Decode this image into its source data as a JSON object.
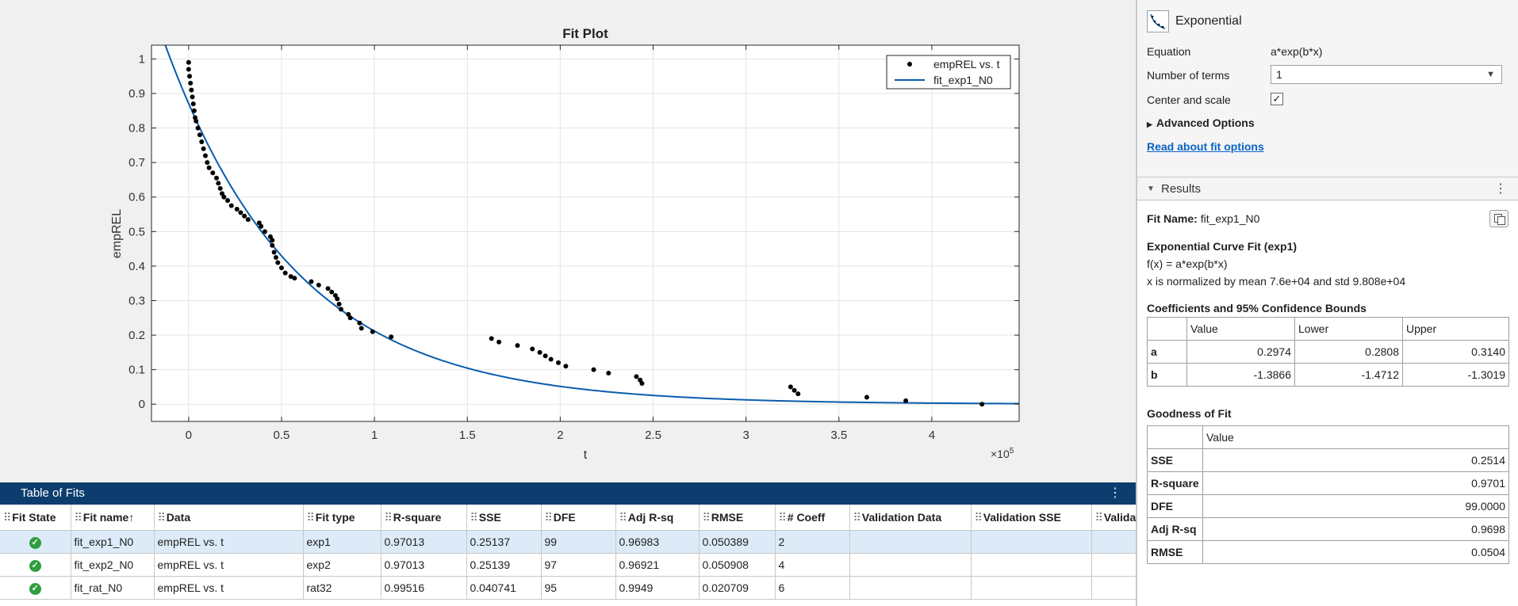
{
  "plot": {
    "title": "Fit Plot",
    "xlabel": "t",
    "ylabel": "empREL",
    "exponent_label": "×10",
    "exponent_power": "5",
    "legend": [
      {
        "label": "empREL vs. t",
        "type": "dots"
      },
      {
        "label": "fit_exp1_N0",
        "type": "line"
      }
    ],
    "x_ticks": [
      "0",
      "0.5",
      "1",
      "1.5",
      "2",
      "2.5",
      "3",
      "3.5",
      "4"
    ],
    "y_ticks": [
      "0",
      "0.1",
      "0.2",
      "0.3",
      "0.4",
      "0.5",
      "0.6",
      "0.7",
      "0.8",
      "0.9",
      "1"
    ],
    "xlim": [
      -0.2,
      4.47
    ],
    "ylim": [
      -0.05,
      1.04
    ],
    "line_color": "#0b5cad",
    "point_color": "#000000"
  },
  "chart_data": {
    "type": "scatter",
    "title": "Fit Plot",
    "xlabel": "t",
    "ylabel": "empREL",
    "x_scale_factor": "×10^5",
    "xlim": [
      -0.2,
      4.47
    ],
    "ylim": [
      -0.05,
      1.04
    ],
    "grid": true,
    "legend_position": "top-right",
    "series": [
      {
        "name": "empREL vs. t",
        "kind": "scatter",
        "points": [
          [
            0.0,
            0.99
          ],
          [
            0.0,
            0.97
          ],
          [
            0.005,
            0.95
          ],
          [
            0.01,
            0.93
          ],
          [
            0.015,
            0.91
          ],
          [
            0.02,
            0.89
          ],
          [
            0.025,
            0.87
          ],
          [
            0.03,
            0.85
          ],
          [
            0.035,
            0.83
          ],
          [
            0.04,
            0.82
          ],
          [
            0.05,
            0.8
          ],
          [
            0.06,
            0.78
          ],
          [
            0.07,
            0.76
          ],
          [
            0.08,
            0.74
          ],
          [
            0.09,
            0.72
          ],
          [
            0.1,
            0.7
          ],
          [
            0.11,
            0.685
          ],
          [
            0.13,
            0.67
          ],
          [
            0.15,
            0.655
          ],
          [
            0.16,
            0.64
          ],
          [
            0.17,
            0.625
          ],
          [
            0.18,
            0.61
          ],
          [
            0.19,
            0.6
          ],
          [
            0.21,
            0.59
          ],
          [
            0.23,
            0.575
          ],
          [
            0.26,
            0.565
          ],
          [
            0.28,
            0.555
          ],
          [
            0.3,
            0.545
          ],
          [
            0.32,
            0.535
          ],
          [
            0.38,
            0.525
          ],
          [
            0.39,
            0.515
          ],
          [
            0.41,
            0.5
          ],
          [
            0.44,
            0.485
          ],
          [
            0.45,
            0.475
          ],
          [
            0.45,
            0.46
          ],
          [
            0.46,
            0.44
          ],
          [
            0.47,
            0.425
          ],
          [
            0.48,
            0.41
          ],
          [
            0.5,
            0.395
          ],
          [
            0.52,
            0.38
          ],
          [
            0.55,
            0.37
          ],
          [
            0.57,
            0.365
          ],
          [
            0.66,
            0.355
          ],
          [
            0.7,
            0.345
          ],
          [
            0.75,
            0.335
          ],
          [
            0.77,
            0.325
          ],
          [
            0.79,
            0.315
          ],
          [
            0.8,
            0.305
          ],
          [
            0.81,
            0.29
          ],
          [
            0.82,
            0.275
          ],
          [
            0.86,
            0.26
          ],
          [
            0.87,
            0.25
          ],
          [
            0.92,
            0.235
          ],
          [
            0.93,
            0.22
          ],
          [
            0.99,
            0.21
          ],
          [
            1.09,
            0.195
          ],
          [
            1.63,
            0.19
          ],
          [
            1.67,
            0.18
          ],
          [
            1.77,
            0.17
          ],
          [
            1.85,
            0.16
          ],
          [
            1.89,
            0.15
          ],
          [
            1.92,
            0.14
          ],
          [
            1.95,
            0.13
          ],
          [
            1.99,
            0.12
          ],
          [
            2.03,
            0.11
          ],
          [
            2.18,
            0.1
          ],
          [
            2.26,
            0.09
          ],
          [
            2.41,
            0.08
          ],
          [
            2.43,
            0.07
          ],
          [
            2.44,
            0.06
          ],
          [
            3.24,
            0.05
          ],
          [
            3.26,
            0.04
          ],
          [
            3.28,
            0.03
          ],
          [
            3.65,
            0.02
          ],
          [
            3.86,
            0.01
          ],
          [
            4.27,
            0.0
          ]
        ]
      },
      {
        "name": "fit_exp1_N0",
        "kind": "line",
        "model": "0.2974*exp(-1.3866*(x-0.76)/0.9808)"
      }
    ]
  },
  "table_of_fits": {
    "title": "Table of Fits",
    "columns": [
      "Fit State",
      "Fit name",
      "Data",
      "Fit type",
      "R-square",
      "SSE",
      "DFE",
      "Adj R-sq",
      "RMSE",
      "# Coeff",
      "Validation Data",
      "Validation SSE",
      "Validat"
    ],
    "sort_indicator": "↑",
    "rows": [
      {
        "name": "fit_exp1_N0",
        "data": "empREL vs. t",
        "type": "exp1",
        "rsq": "0.97013",
        "sse": "0.25137",
        "dfe": "99",
        "adjrsq": "0.96983",
        "rmse": "0.050389",
        "coeff": "2",
        "selected": true
      },
      {
        "name": "fit_exp2_N0",
        "data": "empREL vs. t",
        "type": "exp2",
        "rsq": "0.97013",
        "sse": "0.25139",
        "dfe": "97",
        "adjrsq": "0.96921",
        "rmse": "0.050908",
        "coeff": "4",
        "selected": false
      },
      {
        "name": "fit_rat_N0",
        "data": "empREL vs. t",
        "type": "rat32",
        "rsq": "0.99516",
        "sse": "0.040741",
        "dfe": "95",
        "adjrsq": "0.9949",
        "rmse": "0.020709",
        "coeff": "6",
        "selected": false
      }
    ]
  },
  "fit_options": {
    "fit_type": "Exponential",
    "equation_label": "Equation",
    "equation_value": "a*exp(b*x)",
    "terms_label": "Number of terms",
    "terms_value": "1",
    "center_label": "Center and scale",
    "center_checked": true,
    "advanced_label": "Advanced Options",
    "link_text": "Read about fit options"
  },
  "results": {
    "header": "Results",
    "fit_name_label": "Fit Name:",
    "fit_name_value": "fit_exp1_N0",
    "curve_title": "Exponential Curve Fit (exp1)",
    "formula": "f(x) = a*exp(b*x)",
    "normalization": "x is normalized by mean 7.6e+04 and std 9.808e+04",
    "coeff_title": "Coefficients and 95% Confidence Bounds",
    "coeff_headers": [
      "",
      "Value",
      "Lower",
      "Upper"
    ],
    "coeff_rows": [
      {
        "name": "a",
        "value": "0.2974",
        "lower": "0.2808",
        "upper": "0.3140"
      },
      {
        "name": "b",
        "value": "-1.3866",
        "lower": "-1.4712",
        "upper": "-1.3019"
      }
    ],
    "gof_title": "Goodness of Fit",
    "gof_header": "Value",
    "gof_rows": [
      {
        "name": "SSE",
        "value": "0.2514"
      },
      {
        "name": "R-square",
        "value": "0.9701"
      },
      {
        "name": "DFE",
        "value": "99.0000"
      },
      {
        "name": "Adj R-sq",
        "value": "0.9698"
      },
      {
        "name": "RMSE",
        "value": "0.0504"
      }
    ]
  },
  "icons": {
    "fit_state_ok": "check-circle-icon",
    "menu": "vertical-dots-icon",
    "copy": "copy-icon",
    "dropdown": "chevron-down-icon",
    "collapse": "triangle-down-icon",
    "expand": "triangle-right-icon"
  }
}
